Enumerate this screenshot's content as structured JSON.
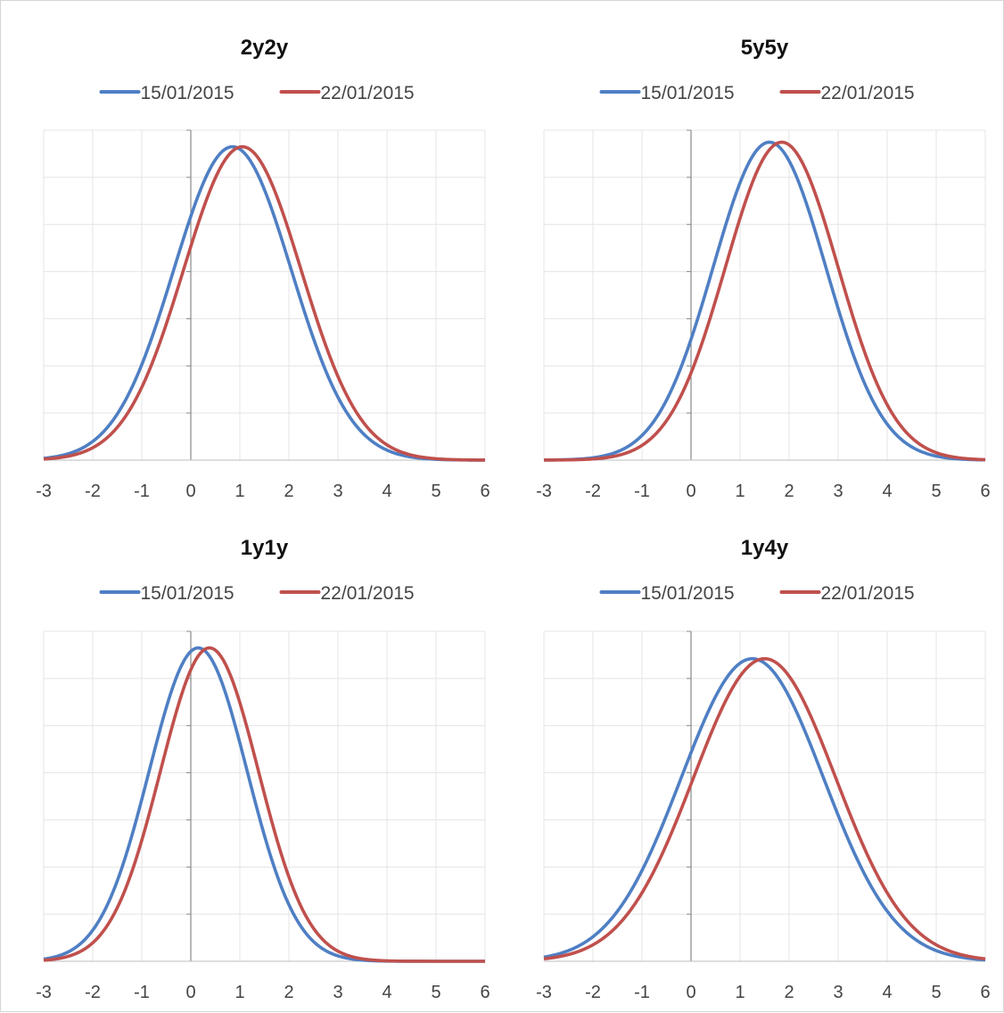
{
  "chart_data": [
    {
      "type": "line",
      "title": "2y2y",
      "xlabel": "",
      "ylabel": "",
      "xlim": [
        -3,
        6
      ],
      "ylim": [
        0,
        0.35
      ],
      "xticks": [
        "-3",
        "-2",
        "-1",
        "0",
        "1",
        "2",
        "3",
        "4",
        "5",
        "6"
      ],
      "grid": true,
      "legend": "top-center",
      "series": [
        {
          "name": "15/01/2015",
          "color": "#4f7fc4",
          "mean": 0.85,
          "sd": 1.2
        },
        {
          "name": "22/01/2015",
          "color": "#c0504d",
          "mean": 1.05,
          "sd": 1.2
        }
      ]
    },
    {
      "type": "line",
      "title": "5y5y",
      "xlabel": "",
      "ylabel": "",
      "xlim": [
        -3,
        6
      ],
      "ylim": [
        0,
        0.36
      ],
      "xticks": [
        "-3",
        "-2",
        "-1",
        "0",
        "1",
        "2",
        "3",
        "4",
        "5",
        "6"
      ],
      "grid": true,
      "legend": "top-center",
      "series": [
        {
          "name": "15/01/2015",
          "color": "#4f7fc4",
          "mean": 1.6,
          "sd": 1.15
        },
        {
          "name": "22/01/2015",
          "color": "#c0504d",
          "mean": 1.85,
          "sd": 1.15
        }
      ]
    },
    {
      "type": "line",
      "title": "1y1y",
      "xlabel": "",
      "ylabel": "",
      "xlim": [
        -3,
        6
      ],
      "ylim": [
        0,
        0.42
      ],
      "xticks": [
        "-3",
        "-2",
        "-1",
        "0",
        "1",
        "2",
        "3",
        "4",
        "5",
        "6"
      ],
      "grid": true,
      "legend": "top-center",
      "series": [
        {
          "name": "15/01/2015",
          "color": "#4f7fc4",
          "mean": 0.15,
          "sd": 1.0
        },
        {
          "name": "22/01/2015",
          "color": "#c0504d",
          "mean": 0.38,
          "sd": 1.0
        }
      ]
    },
    {
      "type": "line",
      "title": "1y4y",
      "xlabel": "",
      "ylabel": "",
      "xlim": [
        -3,
        6
      ],
      "ylim": [
        0,
        0.3
      ],
      "xticks": [
        "-3",
        "-2",
        "-1",
        "0",
        "1",
        "2",
        "3",
        "4",
        "5",
        "6"
      ],
      "grid": true,
      "legend": "top-center",
      "series": [
        {
          "name": "15/01/2015",
          "color": "#4f7fc4",
          "mean": 1.25,
          "sd": 1.45
        },
        {
          "name": "22/01/2015",
          "color": "#c0504d",
          "mean": 1.5,
          "sd": 1.45
        }
      ]
    }
  ]
}
